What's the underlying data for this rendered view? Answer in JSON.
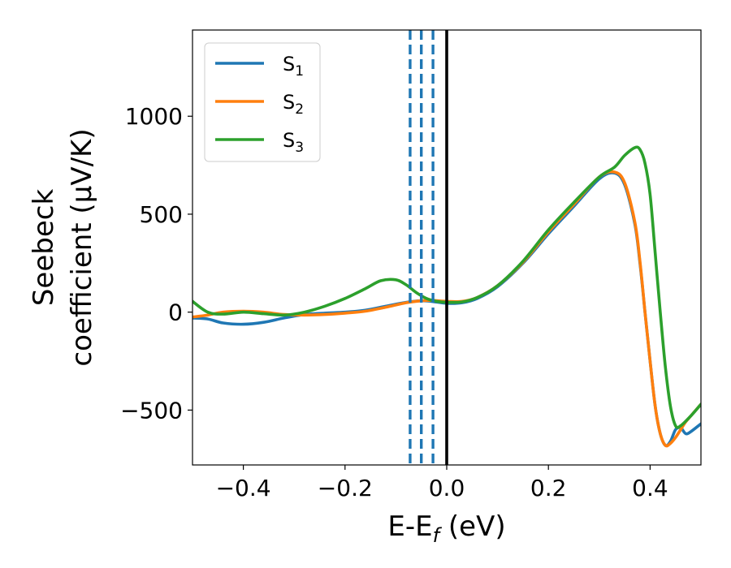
{
  "chart_data": {
    "type": "line",
    "xlabel": "E-E_f (eV)",
    "ylabel_line1": "Seebeck",
    "ylabel_line2": "coefficient  (μV/K)",
    "xlim": [
      -0.5,
      0.5
    ],
    "ylim": [
      -780,
      1440
    ],
    "xticks": [
      -0.4,
      -0.2,
      0.0,
      0.2,
      0.4
    ],
    "xtick_labels": [
      "−0.4",
      "−0.2",
      "0.0",
      "0.2",
      "0.4"
    ],
    "yticks": [
      -500,
      0,
      500,
      1000
    ],
    "ytick_labels": [
      "−500",
      "0",
      "500",
      "1000"
    ],
    "legend_placement": "top-left",
    "grid": false,
    "vlines": [
      {
        "x": -0.072,
        "style": "dashed",
        "color": "#1f77b4"
      },
      {
        "x": -0.05,
        "style": "dashed",
        "color": "#1f77b4"
      },
      {
        "x": -0.027,
        "style": "dashed",
        "color": "#1f77b4"
      },
      {
        "x": 0.0,
        "style": "solid",
        "color": "#000000"
      }
    ],
    "series": [
      {
        "name": "S1",
        "sub": "1",
        "color": "#1f77b4",
        "x": [
          -0.5,
          -0.47,
          -0.44,
          -0.4,
          -0.36,
          -0.32,
          -0.28,
          -0.24,
          -0.2,
          -0.16,
          -0.12,
          -0.08,
          -0.05,
          -0.03,
          0.0,
          0.03,
          0.06,
          0.1,
          0.15,
          0.2,
          0.25,
          0.3,
          0.33,
          0.35,
          0.37,
          0.38,
          0.39,
          0.4,
          0.41,
          0.42,
          0.43,
          0.44,
          0.45,
          0.46,
          0.47,
          0.48,
          0.5
        ],
        "y": [
          -30,
          -35,
          -55,
          -62,
          -52,
          -30,
          -12,
          -5,
          0,
          10,
          30,
          50,
          58,
          55,
          45,
          48,
          70,
          130,
          250,
          400,
          540,
          680,
          710,
          650,
          450,
          250,
          0,
          -250,
          -480,
          -620,
          -680,
          -660,
          -600,
          -590,
          -620,
          -610,
          -570
        ]
      },
      {
        "name": "S2",
        "sub": "2",
        "color": "#ff7f0e",
        "x": [
          -0.5,
          -0.47,
          -0.44,
          -0.4,
          -0.36,
          -0.32,
          -0.28,
          -0.24,
          -0.2,
          -0.16,
          -0.12,
          -0.08,
          -0.05,
          -0.03,
          0.0,
          0.03,
          0.06,
          0.1,
          0.15,
          0.2,
          0.25,
          0.3,
          0.33,
          0.35,
          0.37,
          0.38,
          0.39,
          0.4,
          0.41,
          0.42,
          0.43,
          0.44,
          0.45,
          0.46,
          0.47,
          0.48,
          0.5
        ],
        "y": [
          -25,
          -15,
          0,
          5,
          0,
          -12,
          -15,
          -12,
          -5,
          5,
          25,
          48,
          58,
          60,
          55,
          55,
          75,
          135,
          255,
          410,
          550,
          690,
          715,
          660,
          460,
          260,
          0,
          -250,
          -480,
          -620,
          -680,
          -670,
          -640,
          -600,
          -560,
          -530,
          -470
        ]
      },
      {
        "name": "S3",
        "sub": "3",
        "color": "#2ca02c",
        "x": [
          -0.5,
          -0.47,
          -0.44,
          -0.4,
          -0.36,
          -0.32,
          -0.28,
          -0.24,
          -0.2,
          -0.16,
          -0.13,
          -0.1,
          -0.08,
          -0.06,
          -0.04,
          -0.02,
          0.0,
          0.03,
          0.06,
          0.1,
          0.15,
          0.2,
          0.25,
          0.3,
          0.33,
          0.35,
          0.37,
          0.38,
          0.39,
          0.4,
          0.41,
          0.42,
          0.43,
          0.44,
          0.45,
          0.46,
          0.48,
          0.5
        ],
        "y": [
          55,
          0,
          -10,
          0,
          -8,
          -15,
          0,
          30,
          70,
          120,
          160,
          165,
          140,
          100,
          70,
          55,
          50,
          52,
          75,
          135,
          260,
          420,
          560,
          690,
          740,
          800,
          840,
          830,
          760,
          600,
          300,
          0,
          -280,
          -480,
          -580,
          -580,
          -530,
          -470
        ]
      }
    ]
  }
}
